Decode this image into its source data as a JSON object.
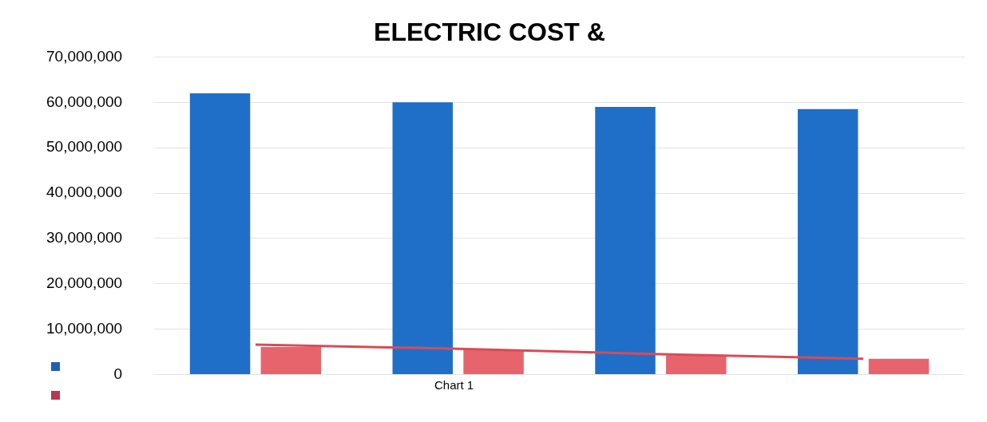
{
  "chart_data": {
    "type": "bar",
    "title": "ELECTRIC COST &",
    "categories": [
      null,
      null,
      null,
      null
    ],
    "series": [
      {
        "color": "#1f6fc8",
        "values": [
          62000000,
          60000000,
          59000000,
          58500000
        ]
      },
      {
        "color": "#e8646c",
        "values": [
          6100000,
          5400000,
          4300000,
          3500000
        ]
      },
      {
        "type": "line",
        "color": "#d94b57",
        "values": [
          6600000,
          5700000,
          4500000,
          3500000
        ]
      }
    ],
    "ylim": [
      0,
      70000000
    ],
    "yticks": [
      0,
      {
        "value": 10000000,
        "label": "10,000,000"
      },
      {
        "value": 20000000,
        "label": "20,000,000"
      },
      {
        "value": 30000000,
        "label": "30,000,000"
      },
      {
        "value": 40000000,
        "label": "40,000,000"
      },
      {
        "value": 50000000,
        "label": "50,000,000"
      },
      {
        "value": 60000000,
        "label": "60,000,000"
      },
      {
        "value": 70000000,
        "label": "70,000,000"
      }
    ],
    "grid": "y",
    "marker": "none",
    "line_style": "solid",
    "annotations": [
      "Chart 1"
    ]
  }
}
